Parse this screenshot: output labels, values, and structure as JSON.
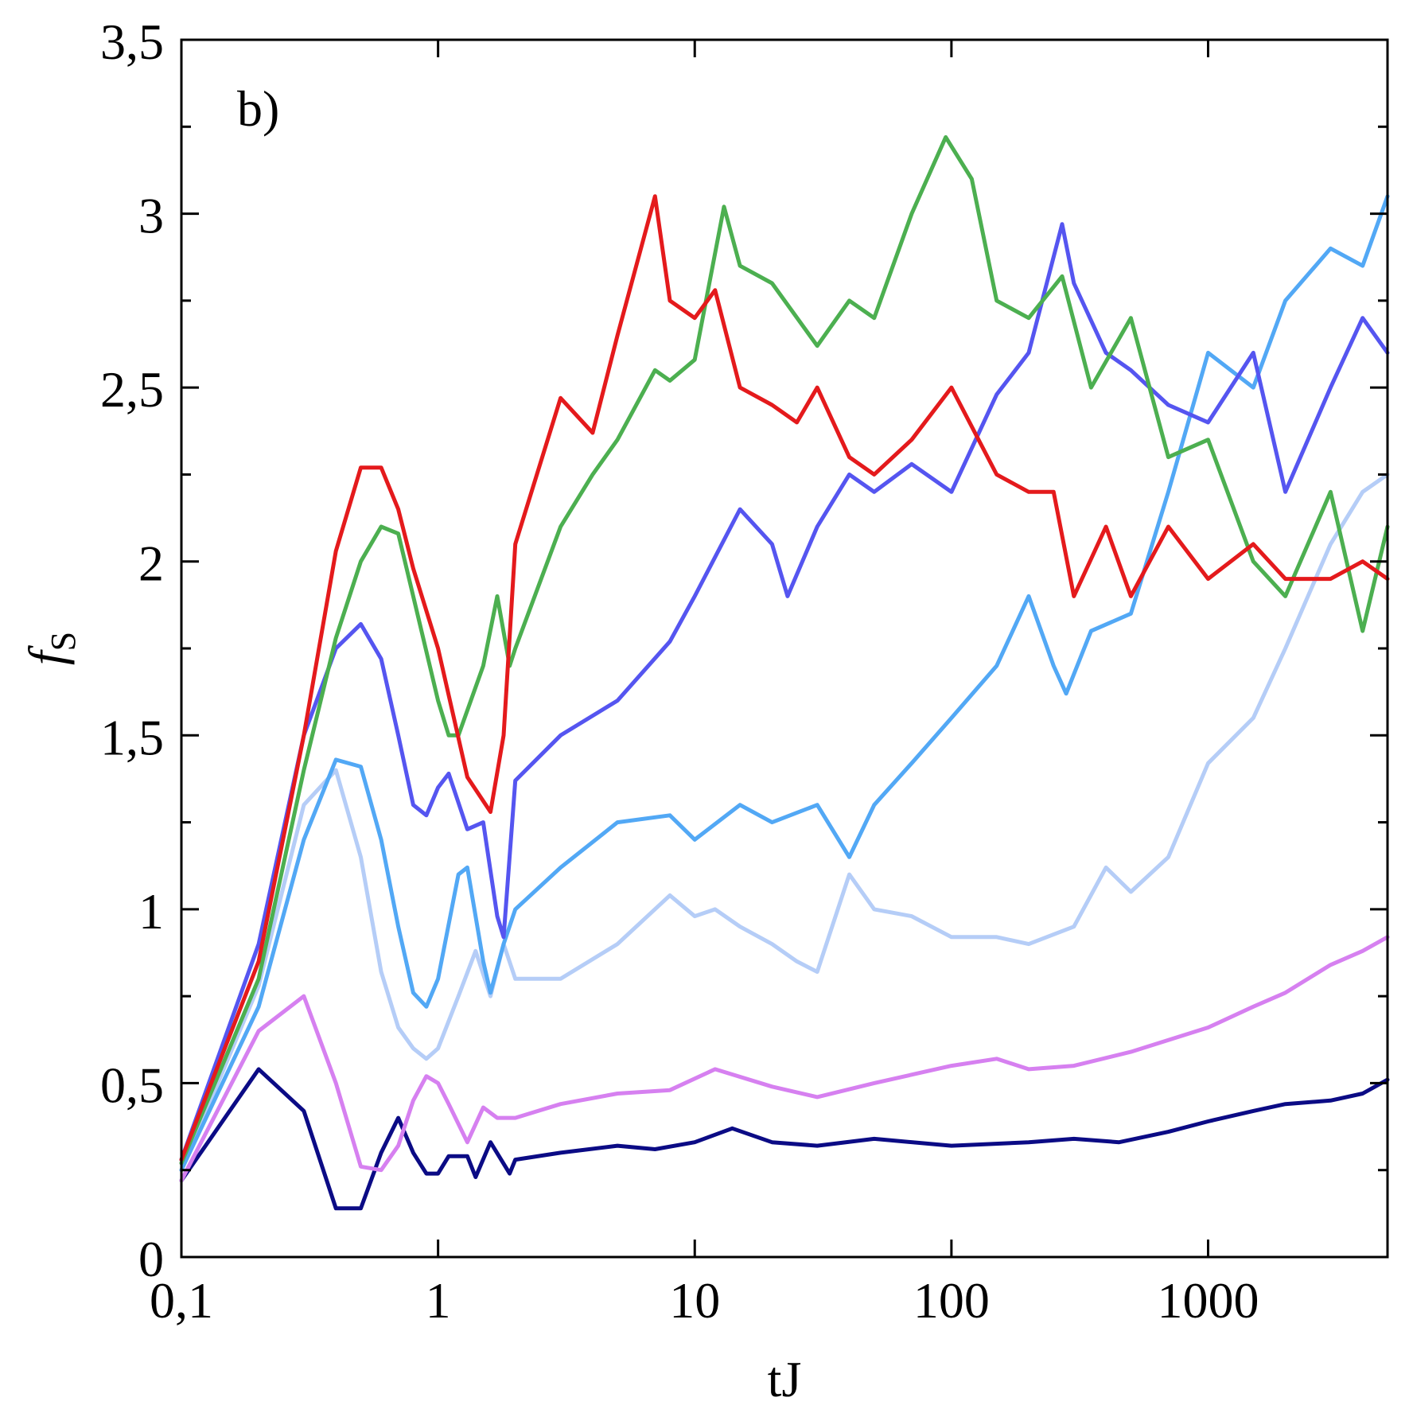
{
  "chart_data": {
    "type": "line",
    "panel_label": "b)",
    "xlabel": "tJ",
    "ylabel": {
      "main": "f",
      "sub": "S"
    },
    "x_scale": "log",
    "xlim": [
      0.1,
      5000
    ],
    "ylim": [
      0,
      3.5
    ],
    "x_ticks": [
      {
        "value": 0.1,
        "label": "0,1"
      },
      {
        "value": 1,
        "label": "1"
      },
      {
        "value": 10,
        "label": "10"
      },
      {
        "value": 100,
        "label": "100"
      },
      {
        "value": 1000,
        "label": "1000"
      }
    ],
    "y_ticks": [
      {
        "value": 0,
        "label": "0"
      },
      {
        "value": 0.5,
        "label": "0,5"
      },
      {
        "value": 1,
        "label": "1"
      },
      {
        "value": 1.5,
        "label": "1,5"
      },
      {
        "value": 2,
        "label": "2"
      },
      {
        "value": 2.5,
        "label": "2,5"
      },
      {
        "value": 3,
        "label": "3"
      },
      {
        "value": 3.5,
        "label": "3,5"
      }
    ],
    "grid": false,
    "legend": "none",
    "series": [
      {
        "color": "#0b0b85",
        "points": [
          [
            0.1,
            0.22
          ],
          [
            0.2,
            0.54
          ],
          [
            0.3,
            0.42
          ],
          [
            0.4,
            0.14
          ],
          [
            0.5,
            0.14
          ],
          [
            0.6,
            0.3
          ],
          [
            0.7,
            0.4
          ],
          [
            0.8,
            0.3
          ],
          [
            0.9,
            0.24
          ],
          [
            1,
            0.24
          ],
          [
            1.1,
            0.29
          ],
          [
            1.3,
            0.29
          ],
          [
            1.4,
            0.23
          ],
          [
            1.6,
            0.33
          ],
          [
            1.9,
            0.24
          ],
          [
            2,
            0.28
          ],
          [
            3,
            0.3
          ],
          [
            5,
            0.32
          ],
          [
            7,
            0.31
          ],
          [
            10,
            0.33
          ],
          [
            14,
            0.37
          ],
          [
            20,
            0.33
          ],
          [
            30,
            0.32
          ],
          [
            50,
            0.34
          ],
          [
            100,
            0.32
          ],
          [
            200,
            0.33
          ],
          [
            300,
            0.34
          ],
          [
            450,
            0.33
          ],
          [
            700,
            0.36
          ],
          [
            1000,
            0.39
          ],
          [
            1500,
            0.42
          ],
          [
            2000,
            0.44
          ],
          [
            3000,
            0.45
          ],
          [
            4000,
            0.47
          ],
          [
            5000,
            0.51
          ]
        ]
      },
      {
        "color": "#d680f0",
        "points": [
          [
            0.1,
            0.22
          ],
          [
            0.2,
            0.65
          ],
          [
            0.3,
            0.75
          ],
          [
            0.4,
            0.5
          ],
          [
            0.5,
            0.26
          ],
          [
            0.6,
            0.25
          ],
          [
            0.7,
            0.32
          ],
          [
            0.8,
            0.45
          ],
          [
            0.9,
            0.52
          ],
          [
            1,
            0.5
          ],
          [
            1.1,
            0.44
          ],
          [
            1.3,
            0.33
          ],
          [
            1.5,
            0.43
          ],
          [
            1.7,
            0.4
          ],
          [
            2,
            0.4
          ],
          [
            3,
            0.44
          ],
          [
            5,
            0.47
          ],
          [
            8,
            0.48
          ],
          [
            12,
            0.54
          ],
          [
            20,
            0.49
          ],
          [
            30,
            0.46
          ],
          [
            50,
            0.5
          ],
          [
            100,
            0.55
          ],
          [
            150,
            0.57
          ],
          [
            200,
            0.54
          ],
          [
            300,
            0.55
          ],
          [
            500,
            0.59
          ],
          [
            1000,
            0.66
          ],
          [
            1500,
            0.72
          ],
          [
            2000,
            0.76
          ],
          [
            3000,
            0.84
          ],
          [
            4000,
            0.88
          ],
          [
            5000,
            0.92
          ]
        ]
      },
      {
        "color": "#b5cdf7",
        "points": [
          [
            0.1,
            0.25
          ],
          [
            0.2,
            0.78
          ],
          [
            0.3,
            1.3
          ],
          [
            0.4,
            1.4
          ],
          [
            0.5,
            1.15
          ],
          [
            0.6,
            0.82
          ],
          [
            0.7,
            0.66
          ],
          [
            0.8,
            0.6
          ],
          [
            0.9,
            0.57
          ],
          [
            1,
            0.6
          ],
          [
            1.2,
            0.75
          ],
          [
            1.4,
            0.88
          ],
          [
            1.6,
            0.75
          ],
          [
            1.8,
            0.9
          ],
          [
            2,
            0.8
          ],
          [
            3,
            0.8
          ],
          [
            5,
            0.9
          ],
          [
            8,
            1.04
          ],
          [
            10,
            0.98
          ],
          [
            12,
            1.0
          ],
          [
            15,
            0.95
          ],
          [
            20,
            0.9
          ],
          [
            25,
            0.85
          ],
          [
            30,
            0.82
          ],
          [
            40,
            1.1
          ],
          [
            50,
            1.0
          ],
          [
            70,
            0.98
          ],
          [
            100,
            0.92
          ],
          [
            150,
            0.92
          ],
          [
            200,
            0.9
          ],
          [
            300,
            0.95
          ],
          [
            400,
            1.12
          ],
          [
            500,
            1.05
          ],
          [
            700,
            1.15
          ],
          [
            1000,
            1.42
          ],
          [
            1500,
            1.55
          ],
          [
            2000,
            1.75
          ],
          [
            3000,
            2.05
          ],
          [
            4000,
            2.2
          ],
          [
            5000,
            2.25
          ]
        ]
      },
      {
        "color": "#52a8f5",
        "points": [
          [
            0.1,
            0.25
          ],
          [
            0.2,
            0.72
          ],
          [
            0.3,
            1.2
          ],
          [
            0.4,
            1.43
          ],
          [
            0.5,
            1.41
          ],
          [
            0.6,
            1.2
          ],
          [
            0.7,
            0.95
          ],
          [
            0.8,
            0.76
          ],
          [
            0.9,
            0.72
          ],
          [
            1,
            0.8
          ],
          [
            1.2,
            1.1
          ],
          [
            1.3,
            1.12
          ],
          [
            1.5,
            0.85
          ],
          [
            1.6,
            0.76
          ],
          [
            1.8,
            0.9
          ],
          [
            2,
            1.0
          ],
          [
            3,
            1.12
          ],
          [
            5,
            1.25
          ],
          [
            8,
            1.27
          ],
          [
            10,
            1.2
          ],
          [
            15,
            1.3
          ],
          [
            20,
            1.25
          ],
          [
            30,
            1.3
          ],
          [
            40,
            1.15
          ],
          [
            50,
            1.3
          ],
          [
            70,
            1.42
          ],
          [
            100,
            1.55
          ],
          [
            150,
            1.7
          ],
          [
            200,
            1.9
          ],
          [
            250,
            1.7
          ],
          [
            280,
            1.62
          ],
          [
            350,
            1.8
          ],
          [
            500,
            1.85
          ],
          [
            700,
            2.2
          ],
          [
            1000,
            2.6
          ],
          [
            1500,
            2.5
          ],
          [
            2000,
            2.75
          ],
          [
            3000,
            2.9
          ],
          [
            4000,
            2.85
          ],
          [
            5000,
            3.05
          ]
        ]
      },
      {
        "color": "#5555f0",
        "points": [
          [
            0.1,
            0.28
          ],
          [
            0.2,
            0.9
          ],
          [
            0.3,
            1.5
          ],
          [
            0.4,
            1.75
          ],
          [
            0.5,
            1.82
          ],
          [
            0.6,
            1.72
          ],
          [
            0.7,
            1.5
          ],
          [
            0.8,
            1.3
          ],
          [
            0.9,
            1.27
          ],
          [
            1,
            1.35
          ],
          [
            1.1,
            1.39
          ],
          [
            1.3,
            1.23
          ],
          [
            1.5,
            1.25
          ],
          [
            1.7,
            0.98
          ],
          [
            1.8,
            0.92
          ],
          [
            2,
            1.37
          ],
          [
            3,
            1.5
          ],
          [
            5,
            1.6
          ],
          [
            8,
            1.77
          ],
          [
            10,
            1.9
          ],
          [
            15,
            2.15
          ],
          [
            20,
            2.05
          ],
          [
            23,
            1.9
          ],
          [
            30,
            2.1
          ],
          [
            40,
            2.25
          ],
          [
            50,
            2.2
          ],
          [
            70,
            2.28
          ],
          [
            100,
            2.2
          ],
          [
            150,
            2.48
          ],
          [
            200,
            2.6
          ],
          [
            270,
            2.97
          ],
          [
            300,
            2.8
          ],
          [
            400,
            2.6
          ],
          [
            500,
            2.55
          ],
          [
            700,
            2.45
          ],
          [
            1000,
            2.4
          ],
          [
            1500,
            2.6
          ],
          [
            2000,
            2.2
          ],
          [
            3000,
            2.5
          ],
          [
            4000,
            2.7
          ],
          [
            5000,
            2.6
          ]
        ]
      },
      {
        "color": "#4caf50",
        "points": [
          [
            0.1,
            0.27
          ],
          [
            0.2,
            0.8
          ],
          [
            0.3,
            1.4
          ],
          [
            0.4,
            1.78
          ],
          [
            0.5,
            2.0
          ],
          [
            0.6,
            2.1
          ],
          [
            0.7,
            2.08
          ],
          [
            0.8,
            1.9
          ],
          [
            1,
            1.6
          ],
          [
            1.1,
            1.5
          ],
          [
            1.2,
            1.5
          ],
          [
            1.5,
            1.7
          ],
          [
            1.7,
            1.9
          ],
          [
            1.9,
            1.7
          ],
          [
            2,
            1.75
          ],
          [
            3,
            2.1
          ],
          [
            4,
            2.25
          ],
          [
            5,
            2.35
          ],
          [
            7,
            2.55
          ],
          [
            8,
            2.52
          ],
          [
            10,
            2.58
          ],
          [
            13,
            3.02
          ],
          [
            15,
            2.85
          ],
          [
            20,
            2.8
          ],
          [
            30,
            2.62
          ],
          [
            40,
            2.75
          ],
          [
            50,
            2.7
          ],
          [
            70,
            3.0
          ],
          [
            95,
            3.22
          ],
          [
            120,
            3.1
          ],
          [
            150,
            2.75
          ],
          [
            200,
            2.7
          ],
          [
            270,
            2.82
          ],
          [
            350,
            2.5
          ],
          [
            500,
            2.7
          ],
          [
            700,
            2.3
          ],
          [
            1000,
            2.35
          ],
          [
            1500,
            2.0
          ],
          [
            2000,
            1.9
          ],
          [
            3000,
            2.2
          ],
          [
            4000,
            1.8
          ],
          [
            5000,
            2.1
          ]
        ]
      },
      {
        "color": "#e41a1c",
        "points": [
          [
            0.1,
            0.28
          ],
          [
            0.2,
            0.85
          ],
          [
            0.3,
            1.5
          ],
          [
            0.4,
            2.03
          ],
          [
            0.5,
            2.27
          ],
          [
            0.6,
            2.27
          ],
          [
            0.7,
            2.15
          ],
          [
            0.8,
            1.98
          ],
          [
            1,
            1.75
          ],
          [
            1.3,
            1.38
          ],
          [
            1.6,
            1.28
          ],
          [
            1.8,
            1.5
          ],
          [
            2,
            2.05
          ],
          [
            3,
            2.47
          ],
          [
            4,
            2.37
          ],
          [
            5,
            2.65
          ],
          [
            7,
            3.05
          ],
          [
            8,
            2.75
          ],
          [
            10,
            2.7
          ],
          [
            12,
            2.78
          ],
          [
            15,
            2.5
          ],
          [
            20,
            2.45
          ],
          [
            25,
            2.4
          ],
          [
            30,
            2.5
          ],
          [
            40,
            2.3
          ],
          [
            50,
            2.25
          ],
          [
            70,
            2.35
          ],
          [
            100,
            2.5
          ],
          [
            150,
            2.25
          ],
          [
            200,
            2.2
          ],
          [
            250,
            2.2
          ],
          [
            300,
            1.9
          ],
          [
            400,
            2.1
          ],
          [
            500,
            1.9
          ],
          [
            700,
            2.1
          ],
          [
            1000,
            1.95
          ],
          [
            1500,
            2.05
          ],
          [
            2000,
            1.95
          ],
          [
            3000,
            1.95
          ],
          [
            4000,
            2.0
          ],
          [
            5000,
            1.95
          ]
        ]
      }
    ]
  }
}
